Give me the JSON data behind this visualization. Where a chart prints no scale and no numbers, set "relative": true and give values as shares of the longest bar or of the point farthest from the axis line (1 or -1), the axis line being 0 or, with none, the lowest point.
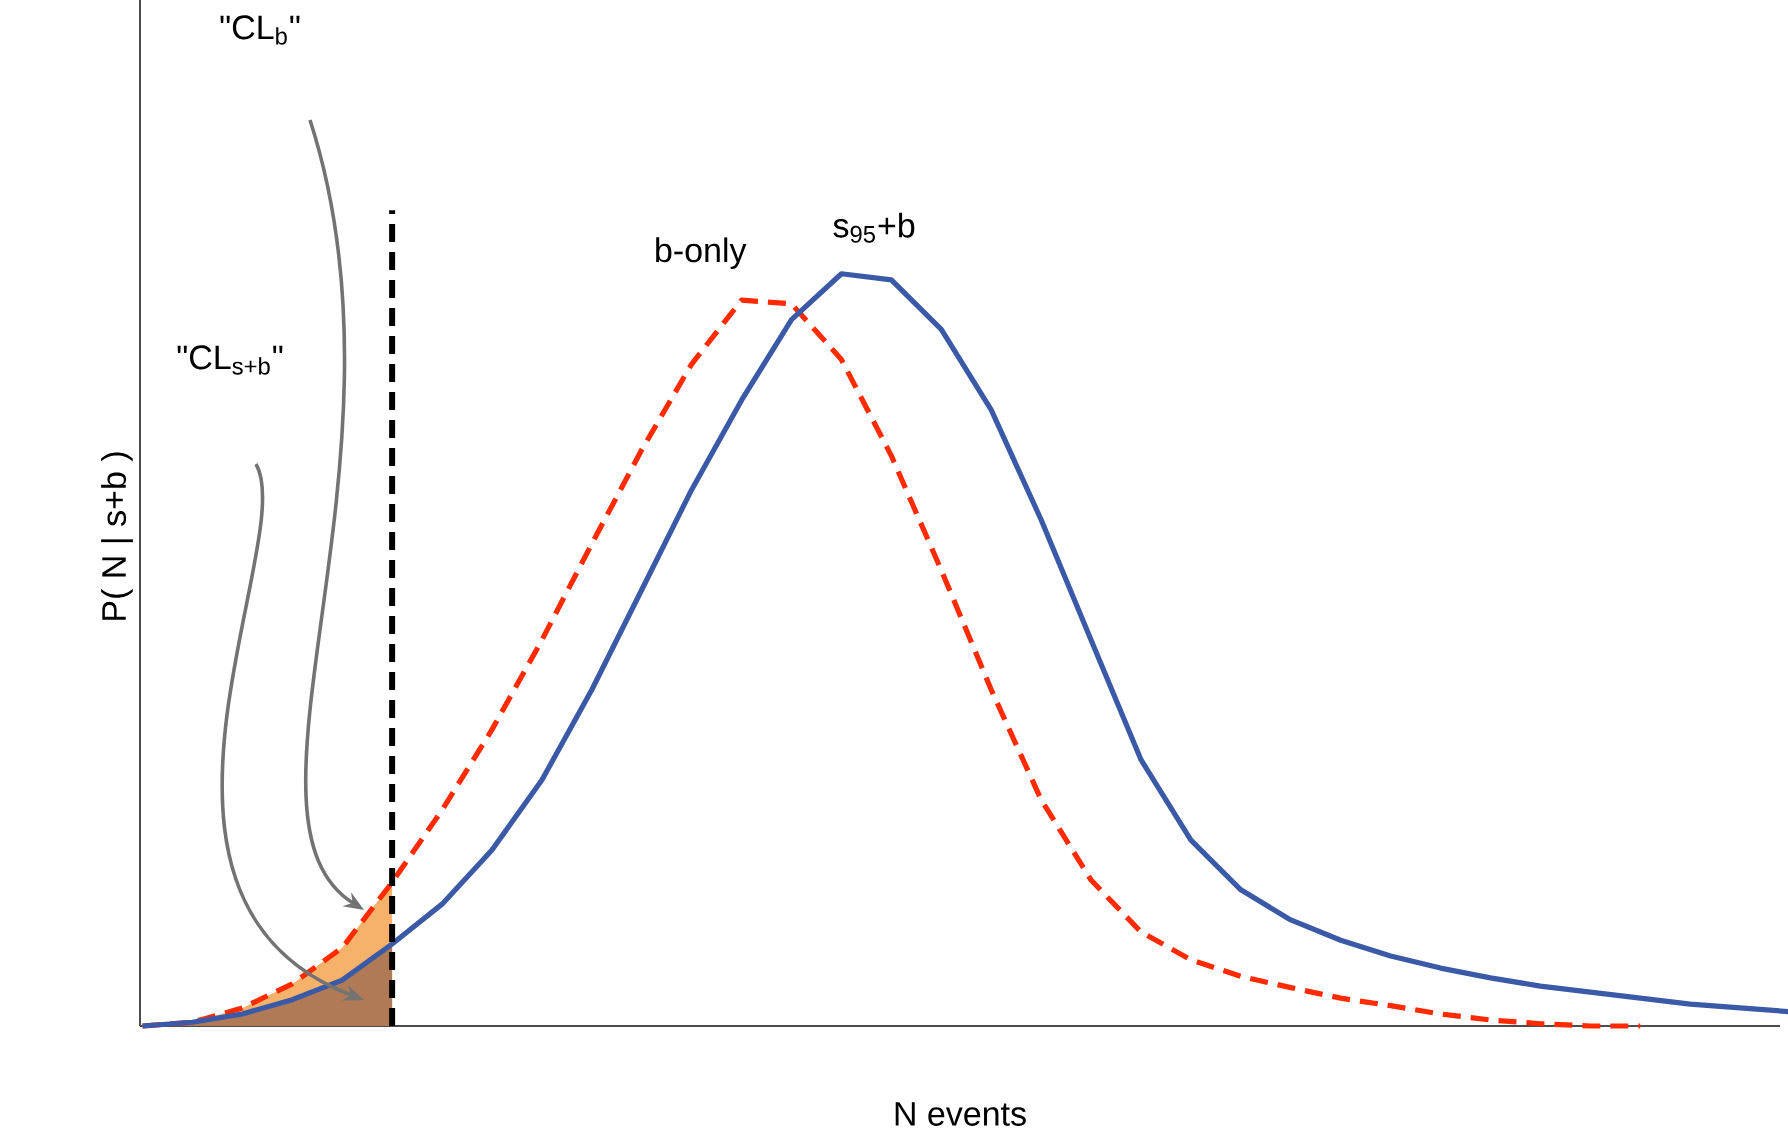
{
  "chart_data": {
    "type": "line",
    "relative": true,
    "xlabel": "N events",
    "ylabel": "P( N | s+b )",
    "categories": [
      null,
      null,
      null,
      null,
      null,
      null,
      null,
      null,
      null,
      null,
      null,
      null,
      null,
      null,
      null,
      null,
      null,
      null,
      null,
      null,
      null,
      null,
      null,
      null,
      null,
      null,
      null,
      null,
      null,
      null,
      null,
      null,
      null,
      null
    ],
    "series": [
      {
        "type": "area",
        "color": "#f6b26b",
        "values": [
          0,
          0.005,
          0.024,
          0.056,
          0.104,
          0.191,
          null,
          null,
          null,
          null,
          null,
          null,
          null,
          null,
          null,
          null,
          null,
          null,
          null,
          null,
          null,
          null,
          null,
          null,
          null,
          null,
          null,
          null,
          null,
          null,
          null,
          null,
          null,
          null
        ]
      },
      {
        "type": "area",
        "color": "#b07a56",
        "values": [
          0,
          0.005,
          0.016,
          0.035,
          0.061,
          0.109,
          null,
          null,
          null,
          null,
          null,
          null,
          null,
          null,
          null,
          null,
          null,
          null,
          null,
          null,
          null,
          null,
          null,
          null,
          null,
          null,
          null,
          null,
          null,
          null,
          null,
          null,
          null,
          null
        ]
      },
      {
        "name": "b-only",
        "color": "#ff2a00",
        "line_style": "dashed",
        "values": [
          0,
          0.005,
          0.024,
          0.056,
          0.104,
          0.191,
          0.287,
          0.394,
          0.513,
          0.641,
          0.766,
          0.88,
          0.965,
          0.96,
          0.886,
          0.758,
          0.606,
          0.447,
          0.301,
          0.194,
          0.125,
          0.088,
          0.066,
          0.051,
          0.037,
          0.027,
          0.016,
          0.008,
          0.003,
          0,
          0,
          null,
          null,
          null
        ]
      },
      {
        "name": "s$_{95}$+b",
        "color": "#3a5aa8",
        "line_style": "solid",
        "values": [
          0,
          0.005,
          0.016,
          0.035,
          0.061,
          0.109,
          0.162,
          0.234,
          0.327,
          0.447,
          0.58,
          0.713,
          0.832,
          0.939,
          1,
          0.992,
          0.926,
          0.819,
          0.673,
          0.513,
          0.354,
          0.247,
          0.181,
          0.141,
          0.114,
          0.093,
          0.077,
          0.064,
          0.053,
          0.045,
          0.037,
          0.029,
          0.024,
          0.019
        ]
      }
    ],
    "annotations": [
      "\"CL$_{b}$\"",
      "\"CL$_{s+b}$\""
    ]
  }
}
